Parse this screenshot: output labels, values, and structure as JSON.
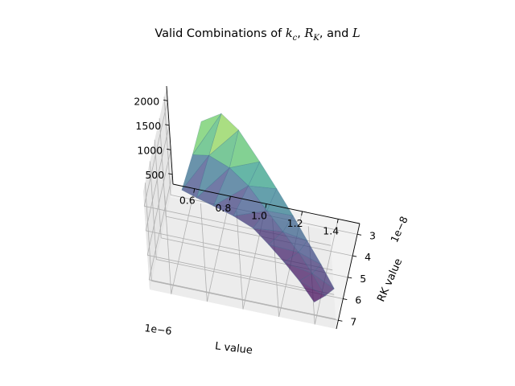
{
  "chart_data": {
    "type": "surface3d",
    "title_parts": {
      "prefix": "Valid Combinations of ",
      "kc": "k",
      "kc_sub": "c",
      "sep1": ", ",
      "rk": "R",
      "rk_sub": "K",
      "sep2": ", and ",
      "l": "L"
    },
    "xlabel": "L value",
    "ylabel": "RK value",
    "zlabel": "",
    "x_offset_label": "1e−6",
    "y_offset_label": "1e−8",
    "x_ticks": [
      0.6,
      0.8,
      1.0,
      1.2,
      1.4
    ],
    "x_tick_labels": [
      "0.6",
      "0.8",
      "1.0",
      "1.2",
      "1.4"
    ],
    "y_ticks": [
      3,
      4,
      5,
      6,
      7
    ],
    "y_tick_labels": [
      "3",
      "4",
      "5",
      "6",
      "7"
    ],
    "z_ticks": [
      500,
      1000,
      1500,
      2000
    ],
    "z_tick_labels": [
      "500",
      "1000",
      "1500",
      "2000"
    ],
    "xlim": [
      0.48,
      1.52
    ],
    "ylim": [
      2.5,
      7.4
    ],
    "zlim": [
      300,
      2300
    ],
    "colormap": "viridis",
    "pane_color": "#f2f2f2",
    "grid_color": "#b0b0b0",
    "points": [
      {
        "L": 0.55,
        "RK": 3.15,
        "kc": 520
      },
      {
        "L": 0.62,
        "RK": 3.05,
        "kc": 1250
      },
      {
        "L": 0.68,
        "RK": 3.0,
        "kc": 1950
      },
      {
        "L": 0.64,
        "RK": 3.4,
        "kc": 540
      },
      {
        "L": 0.72,
        "RK": 3.25,
        "kc": 1400
      },
      {
        "L": 0.8,
        "RK": 3.1,
        "kc": 2250
      },
      {
        "L": 0.74,
        "RK": 3.65,
        "kc": 560
      },
      {
        "L": 0.84,
        "RK": 3.5,
        "kc": 1350
      },
      {
        "L": 0.9,
        "RK": 3.35,
        "kc": 2100
      },
      {
        "L": 0.86,
        "RK": 3.95,
        "kc": 580
      },
      {
        "L": 0.95,
        "RK": 3.8,
        "kc": 1200
      },
      {
        "L": 1.02,
        "RK": 3.7,
        "kc": 1700
      },
      {
        "L": 0.98,
        "RK": 4.35,
        "kc": 600
      },
      {
        "L": 1.06,
        "RK": 4.2,
        "kc": 950
      },
      {
        "L": 1.12,
        "RK": 4.1,
        "kc": 1400
      },
      {
        "L": 1.08,
        "RK": 4.85,
        "kc": 560
      },
      {
        "L": 1.16,
        "RK": 4.7,
        "kc": 820
      },
      {
        "L": 1.22,
        "RK": 4.6,
        "kc": 1150
      },
      {
        "L": 1.18,
        "RK": 5.4,
        "kc": 520
      },
      {
        "L": 1.26,
        "RK": 5.25,
        "kc": 720
      },
      {
        "L": 1.31,
        "RK": 5.15,
        "kc": 950
      },
      {
        "L": 1.28,
        "RK": 6.0,
        "kc": 480
      },
      {
        "L": 1.35,
        "RK": 5.85,
        "kc": 620
      },
      {
        "L": 1.4,
        "RK": 5.75,
        "kc": 800
      },
      {
        "L": 1.38,
        "RK": 6.7,
        "kc": 430
      },
      {
        "L": 1.44,
        "RK": 6.55,
        "kc": 540
      },
      {
        "L": 1.49,
        "RK": 6.45,
        "kc": 680
      }
    ],
    "rows": 9,
    "cols": 3
  }
}
